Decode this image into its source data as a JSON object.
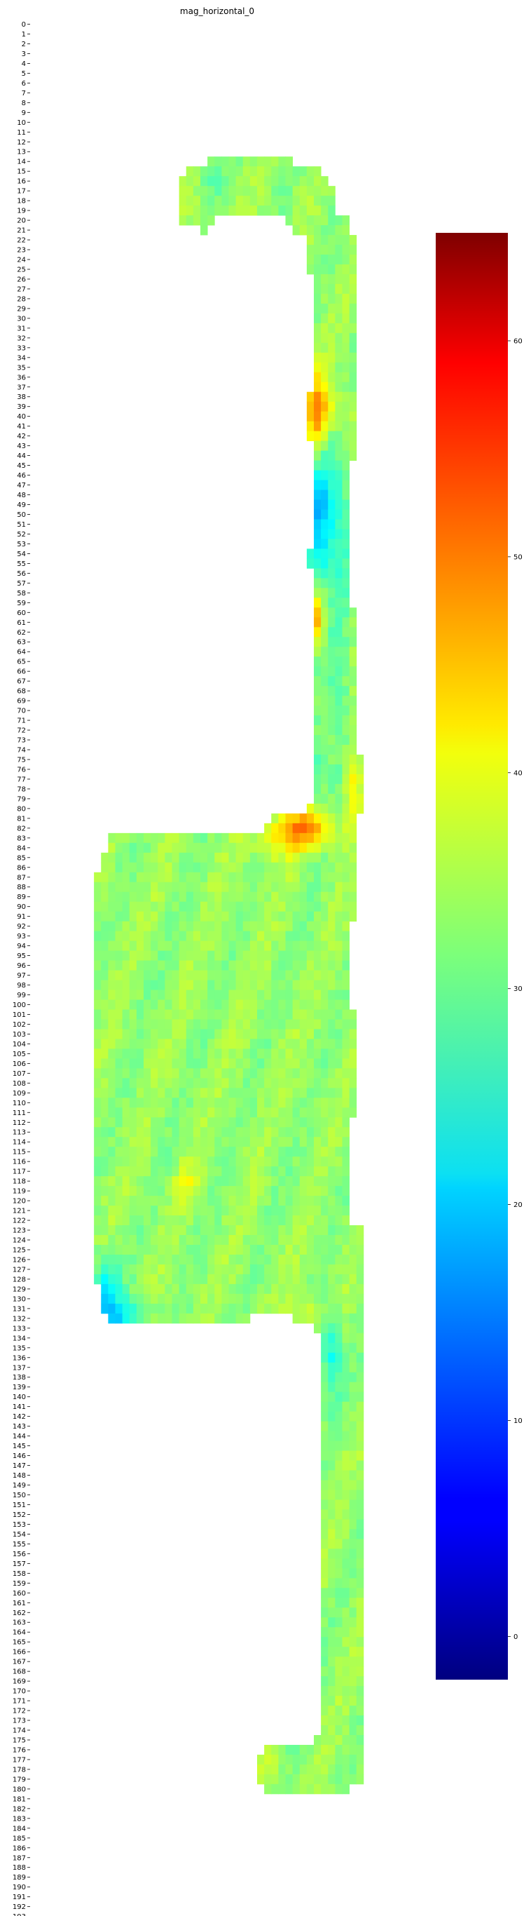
{
  "chart_data": {
    "type": "heatmap",
    "title": "mag_horizontal_0",
    "xlabel": "",
    "ylabel": "",
    "rows": 194,
    "cols": 54,
    "y_tick_step": 1,
    "x_tick_step": 2,
    "colormap": "jet",
    "value_range": [
      -2,
      65
    ],
    "colorbar_ticks": [
      0,
      10,
      20,
      30,
      40,
      50,
      60
    ],
    "background": "#ffffff",
    "mask_polygon": [
      [
        25,
        14
      ],
      [
        37,
        14
      ],
      [
        37,
        15
      ],
      [
        41,
        15
      ],
      [
        41,
        16
      ],
      [
        42,
        16
      ],
      [
        42,
        17
      ],
      [
        43,
        17
      ],
      [
        43,
        20
      ],
      [
        45,
        20
      ],
      [
        45,
        22
      ],
      [
        46,
        22
      ],
      [
        46,
        45
      ],
      [
        45,
        45
      ],
      [
        45,
        60
      ],
      [
        46,
        60
      ],
      [
        46,
        75
      ],
      [
        47,
        75
      ],
      [
        47,
        81
      ],
      [
        46,
        81
      ],
      [
        46,
        92
      ],
      [
        45,
        92
      ],
      [
        45,
        101
      ],
      [
        46,
        101
      ],
      [
        46,
        112
      ],
      [
        45,
        112
      ],
      [
        45,
        123
      ],
      [
        47,
        123
      ],
      [
        47,
        180
      ],
      [
        45,
        180
      ],
      [
        45,
        181
      ],
      [
        33,
        181
      ],
      [
        33,
        180
      ],
      [
        32,
        180
      ],
      [
        32,
        177
      ],
      [
        33,
        177
      ],
      [
        33,
        176
      ],
      [
        40,
        176
      ],
      [
        40,
        175
      ],
      [
        41,
        175
      ],
      [
        41,
        134
      ],
      [
        40,
        134
      ],
      [
        40,
        133
      ],
      [
        37,
        133
      ],
      [
        37,
        132
      ],
      [
        31,
        132
      ],
      [
        31,
        133
      ],
      [
        11,
        133
      ],
      [
        11,
        132
      ],
      [
        10,
        132
      ],
      [
        10,
        129
      ],
      [
        9,
        129
      ],
      [
        9,
        87
      ],
      [
        10,
        87
      ],
      [
        10,
        85
      ],
      [
        11,
        85
      ],
      [
        11,
        83
      ],
      [
        33,
        83
      ],
      [
        33,
        82
      ],
      [
        34,
        82
      ],
      [
        34,
        81
      ],
      [
        39,
        81
      ],
      [
        39,
        80
      ],
      [
        40,
        80
      ],
      [
        40,
        56
      ],
      [
        39,
        56
      ],
      [
        39,
        54
      ],
      [
        40,
        54
      ],
      [
        40,
        43
      ],
      [
        39,
        43
      ],
      [
        39,
        38
      ],
      [
        40,
        38
      ],
      [
        40,
        26
      ],
      [
        39,
        26
      ],
      [
        39,
        22
      ],
      [
        37,
        22
      ],
      [
        37,
        21
      ],
      [
        36,
        21
      ],
      [
        36,
        20
      ],
      [
        26,
        20
      ],
      [
        26,
        21
      ],
      [
        25,
        21
      ],
      [
        25,
        22
      ],
      [
        24,
        22
      ],
      [
        24,
        21
      ],
      [
        21,
        21
      ],
      [
        21,
        16
      ],
      [
        22,
        16
      ],
      [
        22,
        15
      ],
      [
        25,
        15
      ]
    ],
    "base_value": 33,
    "hotspots": [
      {
        "x": 40.5,
        "y": 40.5,
        "value": 46,
        "sx": 1.0,
        "sy": 3.0
      },
      {
        "x": 40.5,
        "y": 61.0,
        "value": 45,
        "sx": 0.8,
        "sy": 2.0
      },
      {
        "x": 38.5,
        "y": 82.5,
        "value": 47,
        "sx": 3.0,
        "sy": 1.3
      },
      {
        "x": 45.5,
        "y": 78.0,
        "value": 41,
        "sx": 1.0,
        "sy": 3.0
      },
      {
        "x": 40.5,
        "y": 51.0,
        "value": 21,
        "sx": 1.2,
        "sy": 5.0
      },
      {
        "x": 43.0,
        "y": 51.0,
        "value": 25,
        "sx": 1.5,
        "sy": 5.0
      },
      {
        "x": 43.5,
        "y": 70.0,
        "value": 28,
        "sx": 1.2,
        "sy": 6.0
      },
      {
        "x": 40.5,
        "y": 76.0,
        "value": 28,
        "sx": 1.0,
        "sy": 2.5
      },
      {
        "x": 10.5,
        "y": 130.0,
        "value": 22,
        "sx": 1.5,
        "sy": 2.5
      },
      {
        "x": 13.0,
        "y": 132.0,
        "value": 24,
        "sx": 2.5,
        "sy": 1.0
      },
      {
        "x": 42.5,
        "y": 136.0,
        "value": 24,
        "sx": 1.0,
        "sy": 3.0
      },
      {
        "x": 38.5,
        "y": 132.0,
        "value": 38,
        "sx": 1.5,
        "sy": 1.2
      },
      {
        "x": 22.0,
        "y": 119.0,
        "value": 38,
        "sx": 1.2,
        "sy": 1.5
      },
      {
        "x": 35.0,
        "y": 84.0,
        "value": 37,
        "sx": 3.0,
        "sy": 1.5
      },
      {
        "x": 25.5,
        "y": 16.0,
        "value": 29,
        "sx": 1.0,
        "sy": 1.0
      },
      {
        "x": 34.0,
        "y": 178.5,
        "value": 36,
        "sx": 1.5,
        "sy": 1.0
      },
      {
        "x": 43.0,
        "y": 40.0,
        "value": 38,
        "sx": 2.0,
        "sy": 2.0
      }
    ]
  }
}
